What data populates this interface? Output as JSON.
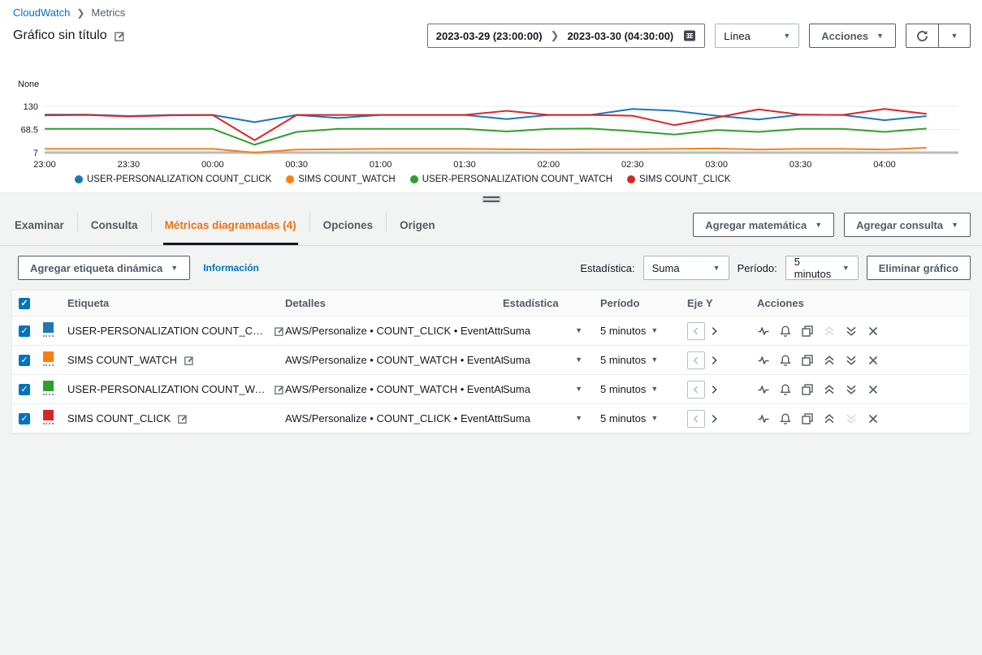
{
  "breadcrumb": {
    "root": "CloudWatch",
    "current": "Metrics"
  },
  "header": {
    "title": "Gráfico sin título",
    "date_start": "2023-03-29 (23:00:00)",
    "date_end": "2023-03-30 (04:30:00)",
    "chart_type_value": "Línea",
    "actions_label": "Acciones"
  },
  "chart_data": {
    "type": "line",
    "ylabel": "None",
    "yticks": [
      130,
      68.5,
      7
    ],
    "ylim": [
      7,
      130
    ],
    "grid": true,
    "legend_position": "bottom",
    "xticks": [
      "23:00",
      "23:30",
      "00:00",
      "00:30",
      "01:00",
      "01:30",
      "02:00",
      "02:30",
      "03:00",
      "03:30",
      "04:00"
    ],
    "x": [
      "23:00",
      "23:15",
      "23:30",
      "23:45",
      "00:00",
      "00:15",
      "00:30",
      "00:45",
      "01:00",
      "01:15",
      "01:30",
      "01:45",
      "02:00",
      "02:15",
      "02:30",
      "02:45",
      "03:00",
      "03:15",
      "03:30",
      "03:45",
      "04:00",
      "04:15"
    ],
    "series": [
      {
        "name": "USER-PERSONALIZATION COUNT_CLICK",
        "color": "#1f77b4",
        "values": [
          108,
          108,
          104,
          107,
          107,
          88,
          107,
          99,
          107,
          107,
          107,
          96,
          107,
          107,
          123,
          118,
          105,
          95,
          108,
          107,
          93,
          104
        ]
      },
      {
        "name": "SIMS COUNT_WATCH",
        "color": "#ff7f0e",
        "values": [
          17,
          17,
          17,
          17,
          17,
          7,
          15,
          16,
          17,
          17,
          17,
          16,
          15,
          16,
          16,
          17,
          18,
          15,
          17,
          17,
          15,
          20
        ]
      },
      {
        "name": "USER-PERSONALIZATION COUNT_WATCH",
        "color": "#2ca02c",
        "values": [
          70,
          70,
          70,
          70,
          70,
          28,
          62,
          70,
          70,
          70,
          70,
          63,
          70,
          71,
          64,
          55,
          67,
          62,
          70,
          70,
          62,
          71
        ]
      },
      {
        "name": "SIMS COUNT_CLICK",
        "color": "#d62728",
        "values": [
          106,
          107,
          103,
          106,
          107,
          40,
          107,
          107,
          107,
          107,
          107,
          118,
          107,
          107,
          105,
          80,
          100,
          122,
          108,
          107,
          123,
          110
        ]
      }
    ]
  },
  "tabs": {
    "items": [
      "Examinar",
      "Consulta",
      "Métricas diagramadas (4)",
      "Opciones",
      "Origen"
    ],
    "active_index": 2,
    "add_math_label": "Agregar matemática",
    "add_query_label": "Agregar consulta"
  },
  "toolbar": {
    "add_dynamic_label": "Agregar etiqueta dinámica",
    "info_link": "Información",
    "statistic_label": "Estadística:",
    "statistic_value": "Suma",
    "period_label": "Período:",
    "period_value": "5 minutos",
    "delete_chart_label": "Eliminar gráfico"
  },
  "table": {
    "columns": [
      "Etiqueta",
      "Detalles",
      "Estadística",
      "Período",
      "Eje Y",
      "Acciones"
    ],
    "rows": [
      {
        "checked": true,
        "color": "#1f77b4",
        "label": "USER-PERSONALIZATION COUNT_CLICK",
        "details": "AWS/Personalize • COUNT_CLICK • EventAttr",
        "statistic": "Suma",
        "period": "5 minutos",
        "disabled_action": "move-up"
      },
      {
        "checked": true,
        "color": "#ff7f0e",
        "label": "SIMS COUNT_WATCH",
        "details": "AWS/Personalize • COUNT_WATCH • EventAt",
        "statistic": "Suma",
        "period": "5 minutos",
        "disabled_action": null
      },
      {
        "checked": true,
        "color": "#2ca02c",
        "label": "USER-PERSONALIZATION COUNT_WA...",
        "details": "AWS/Personalize • COUNT_WATCH • EventAt",
        "statistic": "Suma",
        "period": "5 minutos",
        "disabled_action": null
      },
      {
        "checked": true,
        "color": "#d62728",
        "label": "SIMS COUNT_CLICK",
        "details": "AWS/Personalize • COUNT_CLICK • EventAttr",
        "statistic": "Suma",
        "period": "5 minutos",
        "disabled_action": "move-down"
      }
    ]
  },
  "colors": {
    "link_blue": "#0073bb",
    "active_tab_orange": "#ec7211",
    "button_gray": "#545b64",
    "checkbox_blue": "#0073bb",
    "grid_line": "#eaeded",
    "axis_line": "#b5bcbc"
  }
}
